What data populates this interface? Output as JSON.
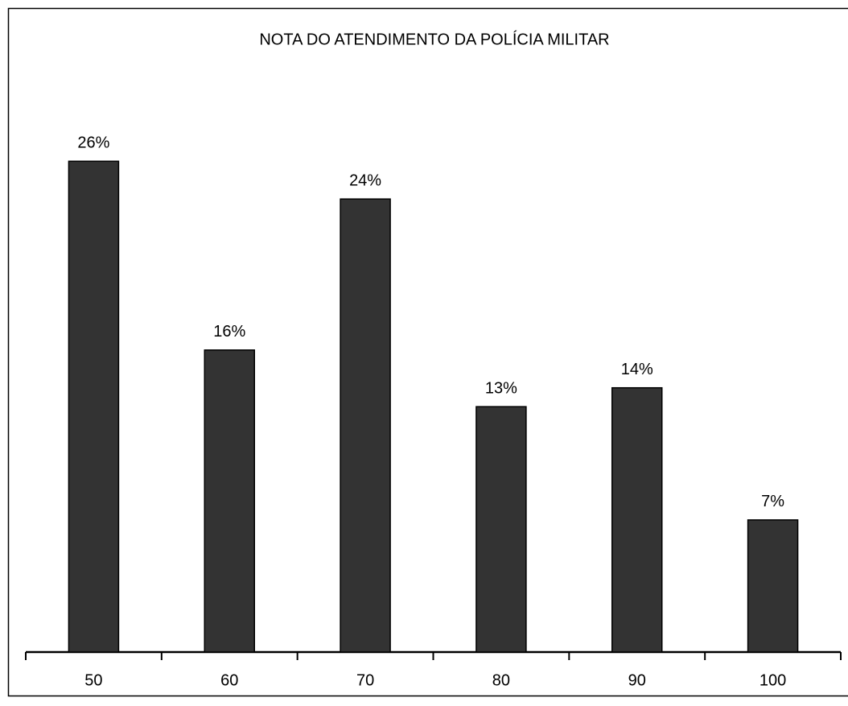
{
  "chart_data": {
    "type": "bar",
    "title": "NOTA DO ATENDIMENTO DA POLÍCIA MILITAR",
    "categories": [
      "50",
      "60",
      "70",
      "80",
      "90",
      "100"
    ],
    "values": [
      26,
      16,
      24,
      13,
      14,
      7
    ],
    "value_labels": [
      "26%",
      "16%",
      "24%",
      "13%",
      "14%",
      "7%"
    ],
    "color": "#333333"
  }
}
